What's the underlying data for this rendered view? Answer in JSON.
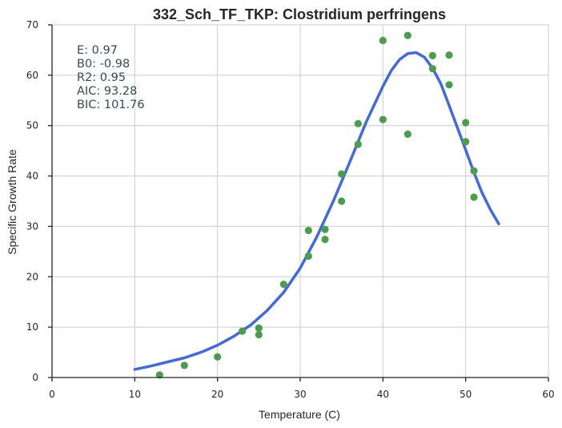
{
  "chart_data": {
    "type": "scatter",
    "title": "332_Sch_TF_TKP: Clostridium perfringens",
    "xlabel": "Temperature (C)",
    "ylabel": "Specific Growth Rate",
    "xlim": [
      0,
      60
    ],
    "ylim": [
      0,
      70
    ],
    "xticks": [
      0,
      10,
      20,
      30,
      40,
      50,
      60
    ],
    "yticks": [
      0,
      10,
      20,
      30,
      40,
      50,
      60,
      70
    ],
    "xtick_labels": [
      "0",
      "10",
      "20",
      "30",
      "40",
      "50",
      "60"
    ],
    "ytick_labels": [
      "0",
      "10",
      "20",
      "30",
      "40",
      "50",
      "60",
      "70"
    ],
    "grid": true,
    "colors": {
      "points": "#4a9e4a",
      "fit": "#4169e1",
      "stats": "#2f4f4f"
    },
    "stats": [
      {
        "label": "E:",
        "value": "0.97",
        "text": "E:  0.97"
      },
      {
        "label": "B0:",
        "value": "-0.98",
        "text": "B0:  -0.98"
      },
      {
        "label": "R2:",
        "value": "0.95",
        "text": "R2:  0.95"
      },
      {
        "label": "AIC:",
        "value": "93.28",
        "text": "AIC: 93.28"
      },
      {
        "label": "BIC:",
        "value": "101.76",
        "text": "BIC: 101.76"
      }
    ],
    "series": [
      {
        "kind": "points",
        "points": [
          [
            13,
            0.5
          ],
          [
            16,
            2.4
          ],
          [
            20,
            4.1
          ],
          [
            23,
            9.2
          ],
          [
            25,
            9.8
          ],
          [
            25,
            8.5
          ],
          [
            28,
            18.5
          ],
          [
            31,
            29.2
          ],
          [
            31,
            24.1
          ],
          [
            33,
            29.4
          ],
          [
            33,
            27.4
          ],
          [
            35,
            40.4
          ],
          [
            35,
            35.0
          ],
          [
            37,
            50.4
          ],
          [
            37,
            46.3
          ],
          [
            40,
            66.9
          ],
          [
            40,
            51.2
          ],
          [
            43,
            67.9
          ],
          [
            43,
            48.3
          ],
          [
            46,
            63.9
          ],
          [
            46,
            61.3
          ],
          [
            48,
            64.0
          ],
          [
            48,
            58.1
          ],
          [
            50,
            50.6
          ],
          [
            50,
            46.8
          ],
          [
            51,
            41.0
          ],
          [
            51,
            35.8
          ]
        ]
      },
      {
        "kind": "fit_line",
        "points": [
          [
            10,
            1.6
          ],
          [
            12,
            2.3
          ],
          [
            14,
            3.1
          ],
          [
            16,
            3.9
          ],
          [
            18,
            5.0
          ],
          [
            20,
            6.4
          ],
          [
            22,
            8.2
          ],
          [
            24,
            10.4
          ],
          [
            26,
            13.3
          ],
          [
            28,
            16.9
          ],
          [
            30,
            21.7
          ],
          [
            32,
            27.9
          ],
          [
            34,
            35.0
          ],
          [
            36,
            42.8
          ],
          [
            38,
            50.8
          ],
          [
            40,
            57.8
          ],
          [
            41,
            60.9
          ],
          [
            42,
            63.1
          ],
          [
            43,
            64.3
          ],
          [
            44,
            64.5
          ],
          [
            45,
            63.6
          ],
          [
            46,
            61.4
          ],
          [
            47,
            58.3
          ],
          [
            48,
            54.0
          ],
          [
            49,
            49.6
          ],
          [
            50,
            45.2
          ],
          [
            51,
            40.7
          ],
          [
            52,
            36.6
          ],
          [
            53,
            33.3
          ],
          [
            54,
            30.5
          ]
        ]
      }
    ]
  }
}
